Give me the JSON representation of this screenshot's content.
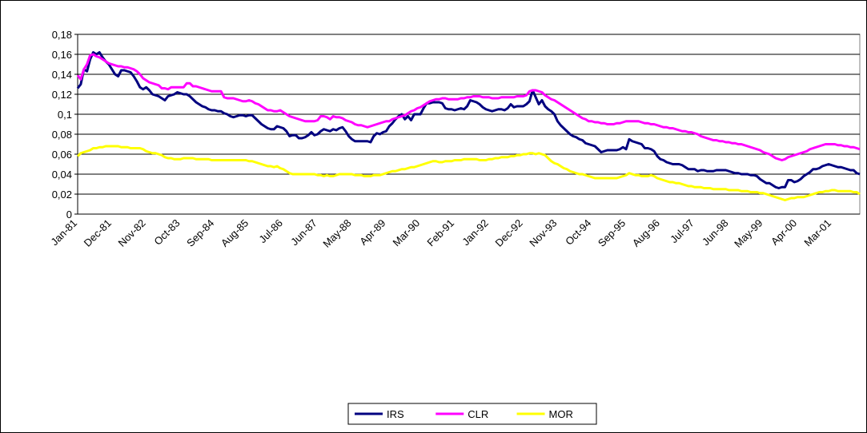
{
  "chart_data": {
    "type": "line",
    "categories": [
      "Jan-81",
      null,
      null,
      null,
      null,
      null,
      null,
      null,
      null,
      null,
      null,
      "Dec-81",
      null,
      null,
      null,
      null,
      null,
      null,
      null,
      null,
      null,
      null,
      "Nov-82",
      null,
      null,
      null,
      null,
      null,
      null,
      null,
      null,
      null,
      null,
      "Oct-83",
      null,
      null,
      null,
      null,
      null,
      null,
      null,
      null,
      null,
      null,
      "Sep-84",
      null,
      null,
      null,
      null,
      null,
      null,
      null,
      null,
      null,
      null,
      "Aug-85",
      null,
      null,
      null,
      null,
      null,
      null,
      null,
      null,
      null,
      null,
      "Jul-86",
      null,
      null,
      null,
      null,
      null,
      null,
      null,
      null,
      null,
      null,
      "Jun-87",
      null,
      null,
      null,
      null,
      null,
      null,
      null,
      null,
      null,
      null,
      "May-88",
      null,
      null,
      null,
      null,
      null,
      null,
      null,
      null,
      null,
      null,
      "Apr-89",
      null,
      null,
      null,
      null,
      null,
      null,
      null,
      null,
      null,
      null,
      "Mar-90",
      null,
      null,
      null,
      null,
      null,
      null,
      null,
      null,
      null,
      null,
      "Feb-91",
      null,
      null,
      null,
      null,
      null,
      null,
      null,
      null,
      null,
      null,
      "Jan-92",
      null,
      null,
      null,
      null,
      null,
      null,
      null,
      null,
      null,
      null,
      "Dec-92",
      null,
      null,
      null,
      null,
      null,
      null,
      null,
      null,
      null,
      null,
      "Nov-93",
      null,
      null,
      null,
      null,
      null,
      null,
      null,
      null,
      null,
      null,
      "Oct-94",
      null,
      null,
      null,
      null,
      null,
      null,
      null,
      null,
      null,
      null,
      "Sep-95",
      null,
      null,
      null,
      null,
      null,
      null,
      null,
      null,
      null,
      null,
      "Aug-96",
      null,
      null,
      null,
      null,
      null,
      null,
      null,
      null,
      null,
      null,
      "Jul-97",
      null,
      null,
      null,
      null,
      null,
      null,
      null,
      null,
      null,
      null,
      "Jun-98",
      null,
      null,
      null,
      null,
      null,
      null,
      null,
      null,
      null,
      null,
      "May-99",
      null,
      null,
      null,
      null,
      null,
      null,
      null,
      null,
      null,
      null,
      "Apr-00",
      null,
      null,
      null,
      null,
      null,
      null,
      null,
      null,
      null,
      null,
      "Mar-01",
      null,
      null,
      null,
      null,
      null,
      null,
      null,
      null,
      null
    ],
    "series": [
      {
        "name": "IRS",
        "color": "#000080",
        "values": [
          0.126,
          0.13,
          0.145,
          0.143,
          0.155,
          0.162,
          0.16,
          0.162,
          0.157,
          0.153,
          0.15,
          0.145,
          0.14,
          0.138,
          0.144,
          0.144,
          0.143,
          0.142,
          0.138,
          0.133,
          0.127,
          0.125,
          0.127,
          0.124,
          0.12,
          0.119,
          0.118,
          0.116,
          0.114,
          0.118,
          0.119,
          0.12,
          0.122,
          0.121,
          0.12,
          0.12,
          0.118,
          0.115,
          0.112,
          0.11,
          0.108,
          0.107,
          0.105,
          0.104,
          0.104,
          0.103,
          0.103,
          0.101,
          0.1,
          0.098,
          0.097,
          0.098,
          0.099,
          0.099,
          0.098,
          0.099,
          0.099,
          0.096,
          0.093,
          0.09,
          0.088,
          0.086,
          0.085,
          0.085,
          0.088,
          0.087,
          0.086,
          0.083,
          0.078,
          0.079,
          0.079,
          0.076,
          0.076,
          0.077,
          0.079,
          0.082,
          0.079,
          0.08,
          0.083,
          0.085,
          0.084,
          0.083,
          0.085,
          0.084,
          0.086,
          0.087,
          0.083,
          0.078,
          0.075,
          0.073,
          0.073,
          0.073,
          0.073,
          0.073,
          0.072,
          0.078,
          0.081,
          0.08,
          0.082,
          0.083,
          0.088,
          0.091,
          0.095,
          0.098,
          0.1,
          0.095,
          0.098,
          0.094,
          0.1,
          0.1,
          0.1,
          0.106,
          0.111,
          0.111,
          0.112,
          0.112,
          0.112,
          0.111,
          0.106,
          0.105,
          0.105,
          0.104,
          0.105,
          0.106,
          0.105,
          0.108,
          0.114,
          0.113,
          0.112,
          0.11,
          0.107,
          0.105,
          0.104,
          0.103,
          0.104,
          0.105,
          0.105,
          0.104,
          0.106,
          0.11,
          0.107,
          0.108,
          0.108,
          0.108,
          0.11,
          0.113,
          0.124,
          0.117,
          0.11,
          0.114,
          0.108,
          0.105,
          0.103,
          0.1,
          0.093,
          0.089,
          0.086,
          0.083,
          0.08,
          0.078,
          0.077,
          0.075,
          0.074,
          0.071,
          0.07,
          0.069,
          0.068,
          0.065,
          0.062,
          0.063,
          0.064,
          0.064,
          0.064,
          0.064,
          0.065,
          0.067,
          0.065,
          0.075,
          0.073,
          0.072,
          0.071,
          0.07,
          0.066,
          0.066,
          0.065,
          0.063,
          0.058,
          0.055,
          0.054,
          0.052,
          0.051,
          0.05,
          0.05,
          0.05,
          0.049,
          0.047,
          0.045,
          0.045,
          0.045,
          0.043,
          0.044,
          0.044,
          0.043,
          0.043,
          0.043,
          0.044,
          0.044,
          0.044,
          0.044,
          0.043,
          0.042,
          0.041,
          0.041,
          0.04,
          0.04,
          0.04,
          0.039,
          0.039,
          0.038,
          0.035,
          0.033,
          0.031,
          0.031,
          0.029,
          0.027,
          0.026,
          0.027,
          0.027,
          0.034,
          0.034,
          0.032,
          0.033,
          0.035,
          0.038,
          0.04,
          0.042,
          0.045,
          0.045,
          0.046,
          0.048,
          0.049,
          0.05,
          0.049,
          0.048,
          0.047,
          0.047,
          0.046,
          0.045,
          0.044,
          0.044,
          0.041,
          0.04
        ]
      },
      {
        "name": "CLR",
        "color": "#ff00ff",
        "values": [
          0.139,
          0.135,
          0.145,
          0.15,
          0.159,
          0.16,
          0.158,
          0.157,
          0.155,
          0.153,
          0.151,
          0.15,
          0.149,
          0.148,
          0.148,
          0.147,
          0.147,
          0.146,
          0.145,
          0.143,
          0.14,
          0.136,
          0.134,
          0.132,
          0.131,
          0.13,
          0.129,
          0.126,
          0.126,
          0.125,
          0.127,
          0.127,
          0.127,
          0.127,
          0.127,
          0.131,
          0.131,
          0.128,
          0.128,
          0.127,
          0.126,
          0.125,
          0.124,
          0.123,
          0.123,
          0.123,
          0.123,
          0.117,
          0.116,
          0.116,
          0.116,
          0.115,
          0.114,
          0.113,
          0.113,
          0.114,
          0.113,
          0.111,
          0.11,
          0.108,
          0.106,
          0.104,
          0.104,
          0.103,
          0.103,
          0.104,
          0.102,
          0.1,
          0.098,
          0.097,
          0.096,
          0.095,
          0.094,
          0.093,
          0.093,
          0.093,
          0.093,
          0.094,
          0.098,
          0.098,
          0.097,
          0.095,
          0.098,
          0.097,
          0.097,
          0.096,
          0.094,
          0.093,
          0.092,
          0.09,
          0.089,
          0.089,
          0.088,
          0.087,
          0.088,
          0.089,
          0.09,
          0.091,
          0.092,
          0.093,
          0.093,
          0.095,
          0.096,
          0.097,
          0.098,
          0.099,
          0.101,
          0.103,
          0.104,
          0.106,
          0.107,
          0.109,
          0.111,
          0.113,
          0.114,
          0.115,
          0.115,
          0.116,
          0.116,
          0.115,
          0.115,
          0.115,
          0.115,
          0.116,
          0.116,
          0.117,
          0.117,
          0.118,
          0.118,
          0.118,
          0.117,
          0.117,
          0.117,
          0.116,
          0.116,
          0.116,
          0.117,
          0.117,
          0.117,
          0.117,
          0.117,
          0.118,
          0.118,
          0.118,
          0.119,
          0.123,
          0.124,
          0.124,
          0.123,
          0.122,
          0.119,
          0.117,
          0.115,
          0.114,
          0.112,
          0.11,
          0.108,
          0.106,
          0.104,
          0.102,
          0.1,
          0.098,
          0.096,
          0.095,
          0.093,
          0.093,
          0.092,
          0.092,
          0.091,
          0.091,
          0.09,
          0.09,
          0.09,
          0.091,
          0.091,
          0.092,
          0.093,
          0.093,
          0.093,
          0.093,
          0.093,
          0.092,
          0.091,
          0.091,
          0.09,
          0.09,
          0.089,
          0.088,
          0.087,
          0.087,
          0.086,
          0.086,
          0.085,
          0.084,
          0.083,
          0.083,
          0.082,
          0.082,
          0.081,
          0.08,
          0.078,
          0.077,
          0.076,
          0.075,
          0.074,
          0.074,
          0.073,
          0.073,
          0.072,
          0.072,
          0.071,
          0.071,
          0.07,
          0.07,
          0.069,
          0.068,
          0.067,
          0.066,
          0.065,
          0.064,
          0.062,
          0.061,
          0.06,
          0.058,
          0.056,
          0.055,
          0.054,
          0.055,
          0.057,
          0.058,
          0.059,
          0.06,
          0.061,
          0.062,
          0.063,
          0.065,
          0.066,
          0.067,
          0.068,
          0.069,
          0.07,
          0.07,
          0.07,
          0.07,
          0.069,
          0.069,
          0.068,
          0.068,
          0.067,
          0.067,
          0.066,
          0.065
        ]
      },
      {
        "name": "MOR",
        "color": "#ffff00",
        "values": [
          0.058,
          0.061,
          0.062,
          0.063,
          0.064,
          0.066,
          0.066,
          0.067,
          0.067,
          0.068,
          0.068,
          0.068,
          0.068,
          0.068,
          0.067,
          0.067,
          0.067,
          0.066,
          0.066,
          0.066,
          0.066,
          0.065,
          0.063,
          0.062,
          0.061,
          0.061,
          0.06,
          0.059,
          0.057,
          0.056,
          0.056,
          0.055,
          0.055,
          0.055,
          0.056,
          0.056,
          0.056,
          0.056,
          0.055,
          0.055,
          0.055,
          0.055,
          0.055,
          0.054,
          0.054,
          0.054,
          0.054,
          0.054,
          0.054,
          0.054,
          0.054,
          0.054,
          0.054,
          0.054,
          0.054,
          0.053,
          0.053,
          0.052,
          0.051,
          0.05,
          0.049,
          0.048,
          0.048,
          0.047,
          0.048,
          0.046,
          0.045,
          0.043,
          0.041,
          0.04,
          0.04,
          0.04,
          0.04,
          0.04,
          0.04,
          0.04,
          0.04,
          0.039,
          0.039,
          0.038,
          0.039,
          0.038,
          0.038,
          0.039,
          0.04,
          0.04,
          0.04,
          0.04,
          0.04,
          0.039,
          0.039,
          0.039,
          0.038,
          0.038,
          0.038,
          0.039,
          0.039,
          0.039,
          0.04,
          0.041,
          0.042,
          0.043,
          0.043,
          0.044,
          0.045,
          0.045,
          0.046,
          0.047,
          0.047,
          0.048,
          0.049,
          0.05,
          0.051,
          0.052,
          0.053,
          0.053,
          0.052,
          0.052,
          0.053,
          0.053,
          0.053,
          0.054,
          0.054,
          0.054,
          0.055,
          0.055,
          0.055,
          0.055,
          0.055,
          0.054,
          0.054,
          0.054,
          0.055,
          0.055,
          0.056,
          0.056,
          0.057,
          0.057,
          0.057,
          0.058,
          0.058,
          0.059,
          0.059,
          0.06,
          0.06,
          0.061,
          0.061,
          0.06,
          0.061,
          0.06,
          0.059,
          0.056,
          0.053,
          0.051,
          0.05,
          0.048,
          0.046,
          0.045,
          0.043,
          0.042,
          0.041,
          0.04,
          0.04,
          0.039,
          0.038,
          0.037,
          0.036,
          0.036,
          0.036,
          0.036,
          0.036,
          0.036,
          0.036,
          0.036,
          0.037,
          0.038,
          0.039,
          0.041,
          0.04,
          0.039,
          0.039,
          0.038,
          0.038,
          0.038,
          0.039,
          0.038,
          0.036,
          0.035,
          0.034,
          0.033,
          0.032,
          0.032,
          0.031,
          0.031,
          0.03,
          0.029,
          0.028,
          0.028,
          0.027,
          0.027,
          0.027,
          0.026,
          0.026,
          0.026,
          0.025,
          0.025,
          0.025,
          0.025,
          0.025,
          0.024,
          0.024,
          0.024,
          0.024,
          0.023,
          0.023,
          0.023,
          0.022,
          0.022,
          0.022,
          0.021,
          0.021,
          0.02,
          0.019,
          0.018,
          0.017,
          0.016,
          0.015,
          0.014,
          0.015,
          0.016,
          0.016,
          0.017,
          0.017,
          0.017,
          0.018,
          0.019,
          0.02,
          0.021,
          0.022,
          0.022,
          0.023,
          0.023,
          0.024,
          0.024,
          0.023,
          0.023,
          0.023,
          0.023,
          0.023,
          0.022,
          0.022,
          0.02
        ]
      }
    ],
    "ylim": [
      0,
      0.18
    ],
    "yticks": [
      0,
      {
        "value": 0.02,
        "label": "0,02"
      },
      {
        "value": 0.04,
        "label": "0,04"
      },
      {
        "value": 0.06,
        "label": "0,06"
      },
      {
        "value": 0.08,
        "label": "0,08"
      },
      {
        "value": 0.1,
        "label": "0,1"
      },
      {
        "value": 0.12,
        "label": "0,12"
      },
      {
        "value": 0.14,
        "label": "0,14"
      },
      {
        "value": 0.16,
        "label": "0,16"
      },
      {
        "value": 0.18,
        "label": "0,18"
      }
    ],
    "grid": true,
    "legend": "bottom"
  }
}
